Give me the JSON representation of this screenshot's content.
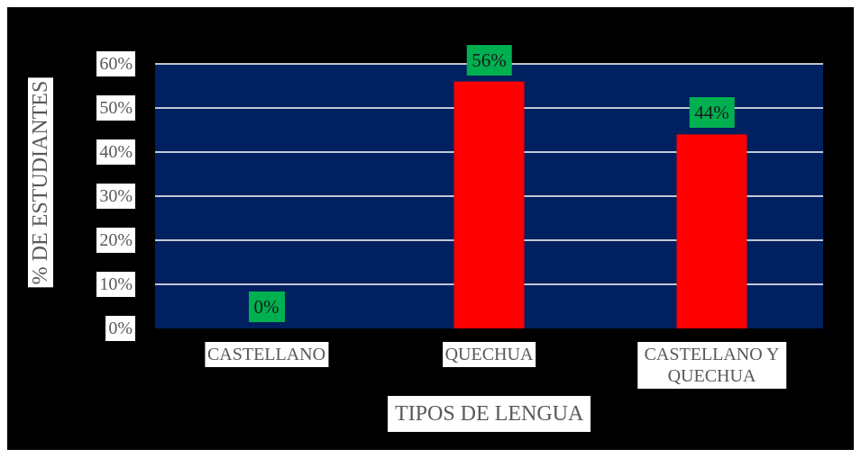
{
  "chart_data": {
    "type": "bar",
    "categories": [
      "CASTELLANO",
      "QUECHUA",
      "CASTELLANO Y QUECHUA"
    ],
    "values": [
      0,
      56,
      44
    ],
    "value_labels": [
      "0%",
      "56%",
      "44%"
    ],
    "color": "#ff0000",
    "label_color": "#00b050",
    "plot_color": "#002060",
    "xlabel": "TIPOS DE LENGUA",
    "ylabel": "% DE ESTUDIANTES",
    "ylim": [
      0,
      60
    ],
    "yticks": [
      {
        "value": 0,
        "label": "0%"
      },
      {
        "value": 10,
        "label": "10%"
      },
      {
        "value": 20,
        "label": "20%"
      },
      {
        "value": 30,
        "label": "30%"
      },
      {
        "value": 40,
        "label": "40%"
      },
      {
        "value": 50,
        "label": "50%"
      },
      {
        "value": 60,
        "label": "60%"
      }
    ],
    "grid": true
  }
}
